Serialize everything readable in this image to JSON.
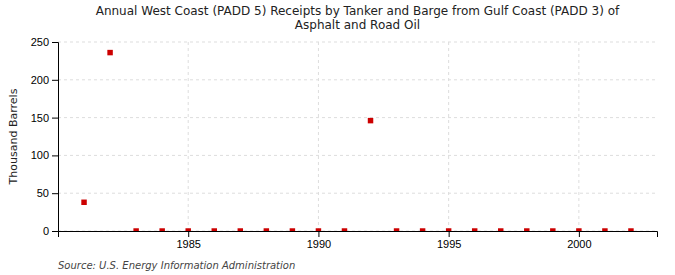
{
  "chart_data": {
    "type": "scatter",
    "title": "Annual West Coast (PADD 5) Receipts by Tanker and Barge from Gulf Coast (PADD 3) of\nAsphalt and Road Oil",
    "ylabel": "Thousand Barrels",
    "source": "Source: U.S. Energy Information Administration",
    "x": [
      1981,
      1982,
      1983,
      1984,
      1985,
      1986,
      1987,
      1988,
      1989,
      1990,
      1991,
      1992,
      1993,
      1994,
      1995,
      1996,
      1997,
      1998,
      1999,
      2000,
      2001,
      2002
    ],
    "values": [
      38,
      236,
      0,
      0,
      0,
      0,
      0,
      0,
      0,
      0,
      0,
      146,
      0,
      0,
      0,
      0,
      0,
      0,
      0,
      0,
      0,
      0
    ],
    "color": "#cc0000",
    "marker": "square",
    "xlim": [
      1980,
      2003
    ],
    "xticks": [
      1985,
      1990,
      1995,
      2000
    ],
    "ylim": [
      0,
      250
    ],
    "yticks": [
      0,
      50,
      100,
      150,
      200,
      250
    ],
    "grid": true
  }
}
